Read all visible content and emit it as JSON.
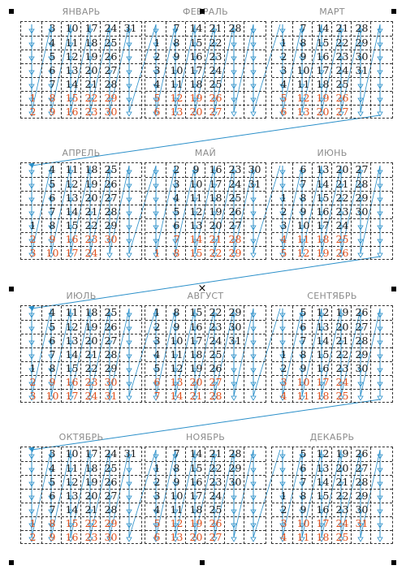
{
  "colors": {
    "weekend": "#e0521f",
    "flow": "#2a8fc9",
    "grid": "#333333",
    "month_title": "#8c8c8c"
  },
  "months": [
    {
      "name": "ЯНВАРЬ",
      "weeks": [
        [
          null,
          3,
          10,
          17,
          24,
          31
        ],
        [
          null,
          4,
          11,
          18,
          25,
          null
        ],
        [
          null,
          5,
          12,
          19,
          26,
          null
        ],
        [
          null,
          6,
          13,
          20,
          27,
          null
        ],
        [
          null,
          7,
          14,
          21,
          28,
          null
        ],
        [
          1,
          8,
          15,
          22,
          29,
          null
        ],
        [
          2,
          9,
          16,
          23,
          30,
          null
        ]
      ]
    },
    {
      "name": "ФЕВРАЛЬ",
      "weeks": [
        [
          null,
          7,
          14,
          21,
          28,
          null
        ],
        [
          1,
          8,
          15,
          22,
          null,
          null
        ],
        [
          2,
          9,
          16,
          23,
          null,
          null
        ],
        [
          3,
          10,
          17,
          24,
          null,
          null
        ],
        [
          4,
          11,
          18,
          25,
          null,
          null
        ],
        [
          5,
          12,
          19,
          26,
          null,
          null
        ],
        [
          6,
          13,
          20,
          27,
          null,
          null
        ]
      ]
    },
    {
      "name": "МАРТ",
      "weeks": [
        [
          null,
          7,
          14,
          21,
          28,
          null
        ],
        [
          1,
          8,
          15,
          22,
          29,
          null
        ],
        [
          2,
          9,
          16,
          23,
          30,
          null
        ],
        [
          3,
          10,
          17,
          24,
          31,
          null
        ],
        [
          4,
          11,
          18,
          25,
          null,
          null
        ],
        [
          5,
          12,
          19,
          26,
          null,
          null
        ],
        [
          6,
          13,
          20,
          27,
          null,
          null
        ]
      ]
    },
    {
      "name": "АПРЕЛЬ",
      "weeks": [
        [
          null,
          4,
          11,
          18,
          25,
          null
        ],
        [
          null,
          5,
          12,
          19,
          26,
          null
        ],
        [
          null,
          6,
          13,
          20,
          27,
          null
        ],
        [
          null,
          7,
          14,
          21,
          28,
          null
        ],
        [
          1,
          8,
          15,
          22,
          29,
          null
        ],
        [
          2,
          9,
          16,
          23,
          30,
          null
        ],
        [
          3,
          10,
          17,
          24,
          null,
          null
        ]
      ]
    },
    {
      "name": "МАЙ",
      "weeks": [
        [
          null,
          2,
          9,
          16,
          23,
          30
        ],
        [
          null,
          3,
          10,
          17,
          24,
          31
        ],
        [
          null,
          4,
          11,
          18,
          25,
          null
        ],
        [
          null,
          5,
          12,
          19,
          26,
          null
        ],
        [
          null,
          6,
          13,
          20,
          27,
          null
        ],
        [
          null,
          7,
          14,
          21,
          28,
          null
        ],
        [
          1,
          8,
          15,
          22,
          29,
          null
        ]
      ]
    },
    {
      "name": "ИЮНЬ",
      "weeks": [
        [
          null,
          6,
          13,
          20,
          27,
          null
        ],
        [
          null,
          7,
          14,
          21,
          28,
          null
        ],
        [
          1,
          8,
          15,
          22,
          29,
          null
        ],
        [
          2,
          9,
          16,
          23,
          30,
          null
        ],
        [
          3,
          10,
          17,
          24,
          null,
          null
        ],
        [
          4,
          11,
          18,
          25,
          null,
          null
        ],
        [
          5,
          12,
          19,
          26,
          null,
          null
        ]
      ]
    },
    {
      "name": "ИЮЛЬ",
      "weeks": [
        [
          null,
          4,
          11,
          18,
          25,
          null
        ],
        [
          null,
          5,
          12,
          19,
          26,
          null
        ],
        [
          null,
          6,
          13,
          20,
          27,
          null
        ],
        [
          null,
          7,
          14,
          21,
          28,
          null
        ],
        [
          1,
          8,
          15,
          22,
          29,
          null
        ],
        [
          2,
          9,
          16,
          23,
          30,
          null
        ],
        [
          3,
          10,
          17,
          24,
          31,
          null
        ]
      ]
    },
    {
      "name": "АВГУСТ",
      "weeks": [
        [
          1,
          8,
          15,
          22,
          29,
          null
        ],
        [
          2,
          9,
          16,
          23,
          30,
          null
        ],
        [
          3,
          10,
          17,
          24,
          31,
          null
        ],
        [
          4,
          11,
          18,
          25,
          null,
          null
        ],
        [
          5,
          12,
          19,
          26,
          null,
          null
        ],
        [
          6,
          13,
          20,
          27,
          null,
          null
        ],
        [
          7,
          14,
          21,
          28,
          null,
          null
        ]
      ]
    },
    {
      "name": "СЕНТЯБРЬ",
      "weeks": [
        [
          null,
          5,
          12,
          19,
          26,
          null
        ],
        [
          null,
          6,
          13,
          20,
          27,
          null
        ],
        [
          null,
          7,
          14,
          21,
          28,
          null
        ],
        [
          1,
          8,
          15,
          22,
          29,
          null
        ],
        [
          2,
          9,
          16,
          23,
          30,
          null
        ],
        [
          3,
          10,
          17,
          24,
          null,
          null
        ],
        [
          4,
          11,
          18,
          25,
          null,
          null
        ]
      ]
    },
    {
      "name": "ОКТЯБРЬ",
      "weeks": [
        [
          null,
          3,
          10,
          17,
          24,
          31
        ],
        [
          null,
          4,
          11,
          18,
          25,
          null
        ],
        [
          null,
          5,
          12,
          19,
          26,
          null
        ],
        [
          null,
          6,
          13,
          20,
          27,
          null
        ],
        [
          null,
          7,
          14,
          21,
          28,
          null
        ],
        [
          1,
          8,
          15,
          22,
          29,
          null
        ],
        [
          2,
          9,
          16,
          23,
          30,
          null
        ]
      ]
    },
    {
      "name": "НОЯБРЬ",
      "weeks": [
        [
          null,
          7,
          14,
          21,
          28,
          null
        ],
        [
          1,
          8,
          15,
          22,
          29,
          null
        ],
        [
          2,
          9,
          16,
          23,
          30,
          null
        ],
        [
          3,
          10,
          17,
          24,
          null,
          null
        ],
        [
          4,
          11,
          18,
          25,
          null,
          null
        ],
        [
          5,
          12,
          19,
          26,
          null,
          null
        ],
        [
          6,
          13,
          20,
          27,
          null,
          null
        ]
      ]
    },
    {
      "name": "ДЕКАБРЬ",
      "weeks": [
        [
          null,
          5,
          12,
          19,
          26,
          null
        ],
        [
          null,
          6,
          13,
          20,
          27,
          null
        ],
        [
          null,
          7,
          14,
          21,
          28,
          null
        ],
        [
          1,
          8,
          15,
          22,
          29,
          null
        ],
        [
          2,
          9,
          16,
          23,
          30,
          null
        ],
        [
          3,
          10,
          17,
          24,
          31,
          null
        ],
        [
          4,
          11,
          18,
          25,
          null,
          null
        ]
      ]
    }
  ]
}
